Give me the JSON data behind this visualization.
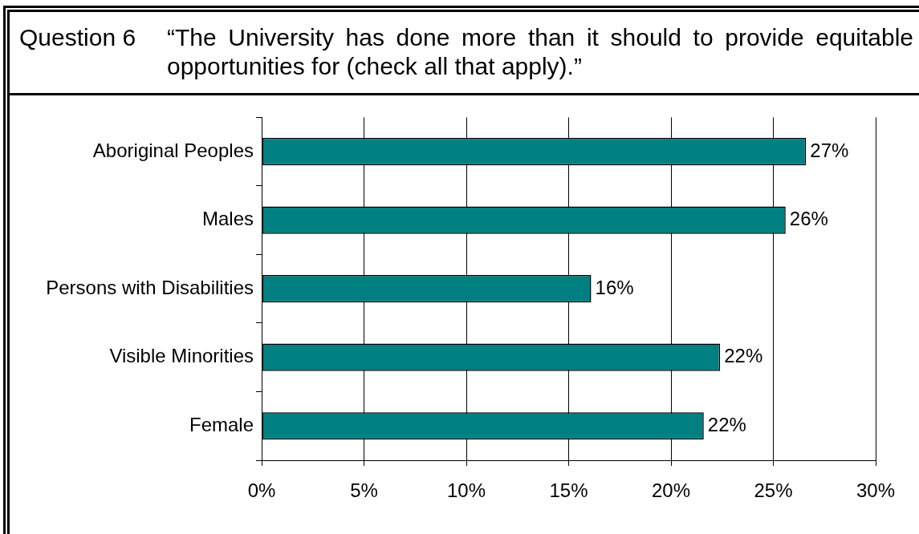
{
  "chart_data": {
    "type": "bar",
    "orientation": "horizontal",
    "title": "Question 6",
    "subtitle": "“The University has done more than it should to provide equitable opportunities for (check all that apply).”",
    "categories": [
      "Aboriginal Peoples",
      "Males",
      "Persons with Disabilities",
      "Visible Minorities",
      "Female"
    ],
    "values": [
      26.6,
      25.6,
      16.1,
      22.4,
      21.6
    ],
    "value_labels": [
      "27%",
      "26%",
      "16%",
      "22%",
      "22%"
    ],
    "color": "#008080",
    "xlim": [
      0,
      30
    ],
    "xticks": [
      {
        "value": 0,
        "label": "0%"
      },
      {
        "value": 5,
        "label": "5%"
      },
      {
        "value": 10,
        "label": "10%"
      },
      {
        "value": 15,
        "label": "15%"
      },
      {
        "value": 20,
        "label": "20%"
      },
      {
        "value": 25,
        "label": "25%"
      },
      {
        "value": 30,
        "label": "30%"
      }
    ],
    "grid": "x"
  }
}
